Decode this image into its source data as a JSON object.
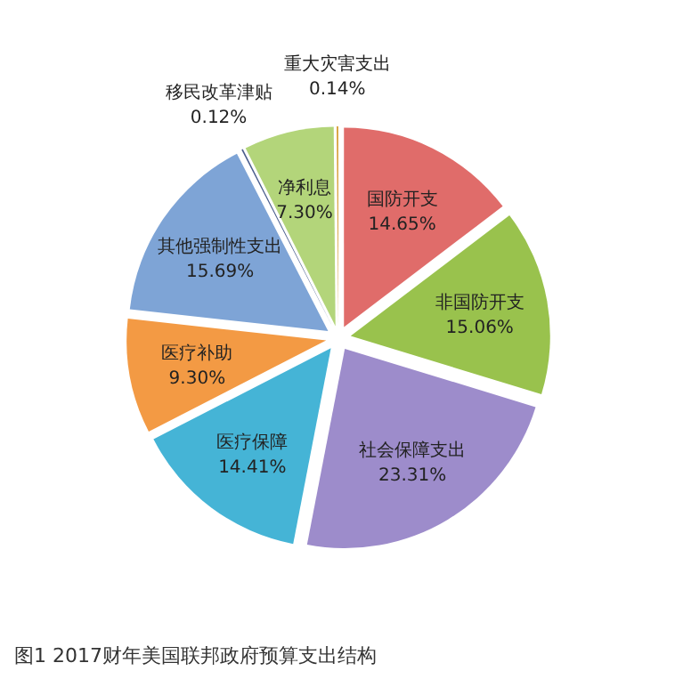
{
  "chart_data": {
    "type": "pie",
    "categories": [
      "国防开支",
      "非国防开支",
      "社会保障支出",
      "医疗保障",
      "医疗补助",
      "其他强制性支出",
      "移民改革津贴",
      "净利息",
      "重大灾害支出"
    ],
    "values": [
      14.65,
      15.06,
      23.31,
      14.41,
      9.3,
      15.69,
      0.12,
      7.3,
      0.14
    ],
    "value_labels": [
      "14.65%",
      "15.06%",
      "23.31%",
      "14.41%",
      "9.30%",
      "15.69%",
      "0.12%",
      "7.30%",
      "0.14%"
    ],
    "colors": [
      "#e06c6a",
      "#99c24d",
      "#9d8ccb",
      "#45b4d6",
      "#f39a44",
      "#7ea4d6",
      "#4a5d8c",
      "#b3d57a",
      "#d9a441"
    ],
    "annotations": [
      "图1 2017财年美国联邦政府预算支出结构"
    ]
  }
}
